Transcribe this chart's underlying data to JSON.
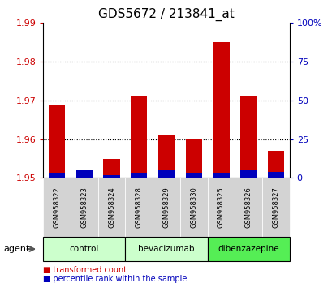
{
  "title": "GDS5672 / 213841_at",
  "samples": [
    "GSM958322",
    "GSM958323",
    "GSM958324",
    "GSM958328",
    "GSM958329",
    "GSM958330",
    "GSM958325",
    "GSM958326",
    "GSM958327"
  ],
  "red_values": [
    1.969,
    1.952,
    1.955,
    1.971,
    1.961,
    1.96,
    1.985,
    1.971,
    1.957
  ],
  "blue_pct": [
    3,
    5,
    2,
    3,
    5,
    3,
    3,
    5,
    4
  ],
  "ymin": 1.95,
  "ymax": 1.99,
  "yticks": [
    1.95,
    1.96,
    1.97,
    1.98,
    1.99
  ],
  "right_yticks": [
    0,
    25,
    50,
    75,
    100
  ],
  "groups": [
    {
      "label": "control",
      "start": 0,
      "end": 2,
      "color": "#ccffcc"
    },
    {
      "label": "bevacizumab",
      "start": 3,
      "end": 5,
      "color": "#ccffcc"
    },
    {
      "label": "dibenzazepine",
      "start": 6,
      "end": 8,
      "color": "#55ee55"
    }
  ],
  "bar_width": 0.6,
  "red_color": "#cc0000",
  "blue_color": "#0000bb",
  "bg_color": "#ffffff",
  "title_fontsize": 11,
  "grid_yticks": [
    1.96,
    1.97,
    1.98
  ]
}
